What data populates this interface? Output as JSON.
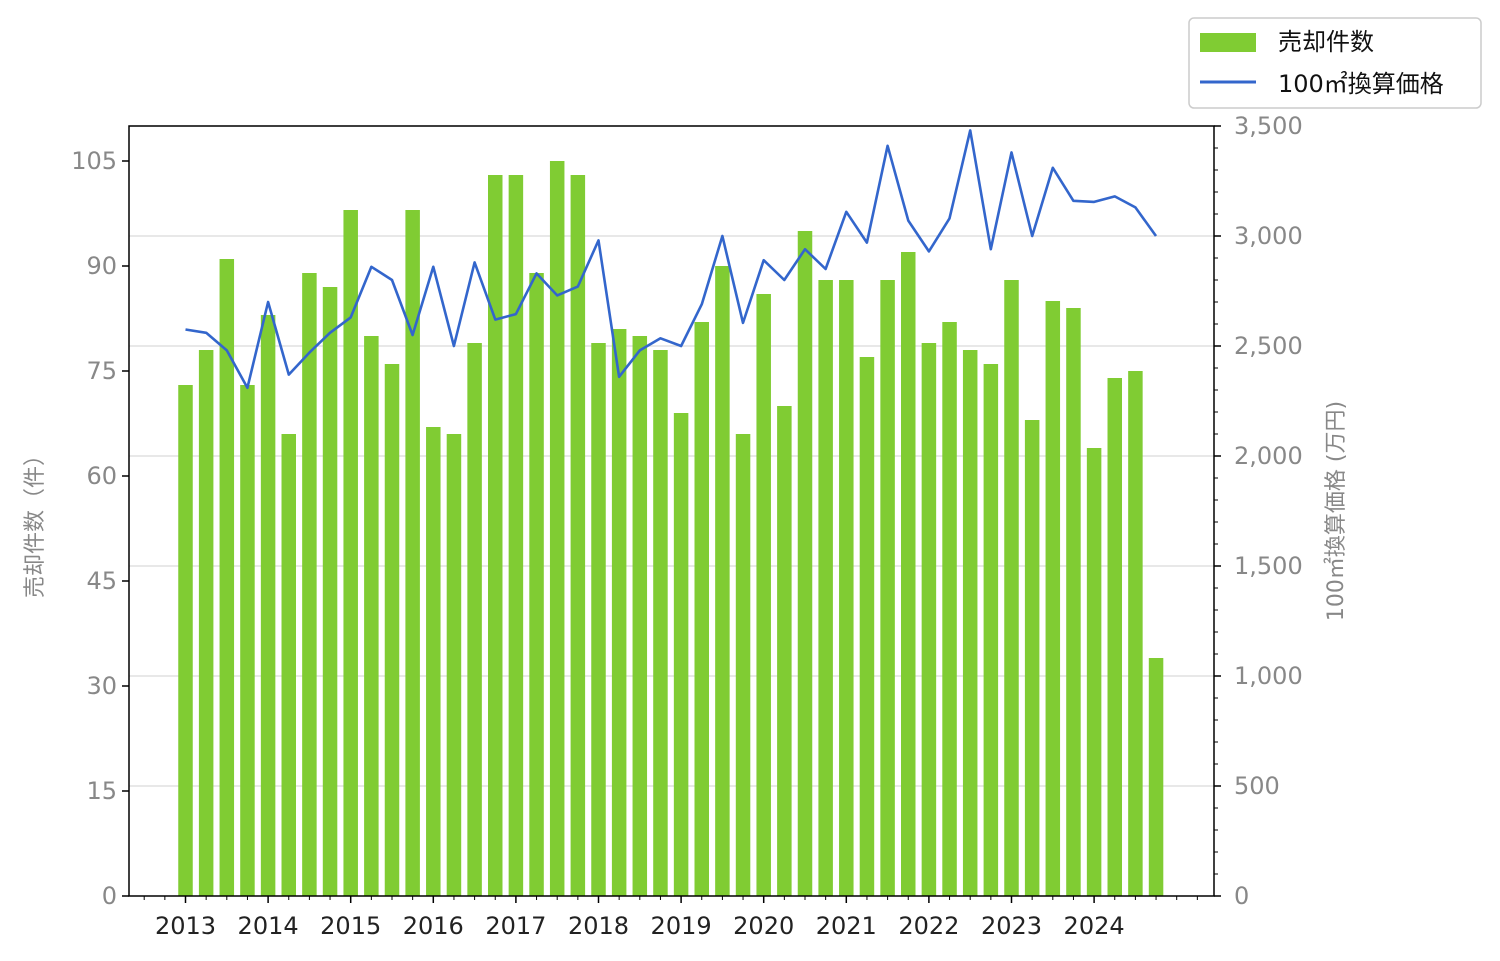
{
  "chart_data": {
    "type": "bar",
    "x_tick_labels": [
      "2013",
      "2014",
      "2015",
      "2016",
      "2017",
      "2018",
      "2019",
      "2020",
      "2021",
      "2022",
      "2023",
      "2024"
    ],
    "series": [
      {
        "name": "売却件数",
        "type": "bar",
        "axis": "left",
        "color": "#80cc33",
        "values": [
          73,
          78,
          91,
          73,
          83,
          66,
          89,
          87,
          98,
          80,
          76,
          98,
          67,
          66,
          79,
          103,
          103,
          89,
          105,
          103,
          79,
          81,
          80,
          78,
          69,
          82,
          90,
          66,
          86,
          70,
          95,
          88,
          88,
          77,
          88,
          92,
          79,
          82,
          78,
          76,
          88,
          68,
          85,
          84,
          64,
          74,
          75,
          34
        ]
      },
      {
        "name": "100㎡換算価格",
        "type": "line",
        "axis": "right",
        "color": "#3366cc",
        "values": [
          2575,
          2560,
          2480,
          2310,
          2700,
          2370,
          2470,
          2560,
          2630,
          2860,
          2800,
          2550,
          2860,
          2500,
          2880,
          2620,
          2645,
          2830,
          2730,
          2770,
          2980,
          2360,
          2480,
          2535,
          2500,
          2690,
          3000,
          2605,
          2890,
          2800,
          2940,
          2850,
          3110,
          2970,
          3410,
          3070,
          2930,
          3080,
          3480,
          2940,
          3380,
          3000,
          3310,
          3160,
          3155,
          3180,
          3130,
          3000
        ]
      }
    ],
    "left_axis": {
      "label": "売却件数（件）",
      "ylim": [
        0,
        110
      ],
      "ticks": [
        "0",
        "15",
        "30",
        "45",
        "60",
        "75",
        "90",
        "105"
      ]
    },
    "right_axis": {
      "label": "100㎡換算価格 (万円)",
      "ylim": [
        0,
        3500
      ],
      "ticks": [
        "0",
        "500",
        "1,000",
        "1,500",
        "2,000",
        "2,500",
        "3,000",
        "3,500"
      ]
    },
    "legend": {
      "placement": "top-right, outside plot",
      "entries": [
        "売却件数",
        "100㎡換算価格"
      ]
    },
    "grid": "horizontal, right axis"
  }
}
